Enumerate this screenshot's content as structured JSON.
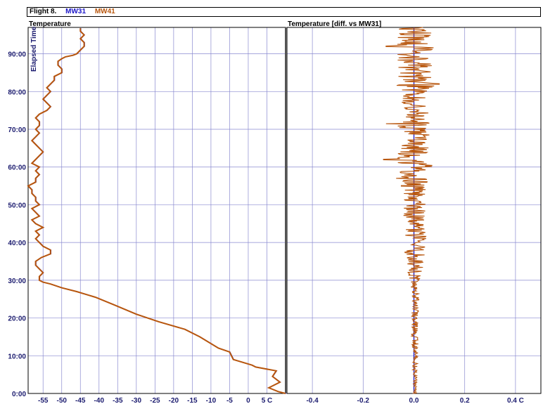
{
  "header": {
    "flight": "Flight 8.",
    "series_names": [
      "MW31",
      "MW41"
    ]
  },
  "colors": {
    "MW31": "#1d17c8",
    "MW41": "#b8560d",
    "grid": "#8a8ad0",
    "axis_text": "#1a1a6e"
  },
  "chart_data": [
    {
      "type": "line",
      "title": "Temperature",
      "xlabel": "",
      "ylabel": "Elapsed Time",
      "x_unit": "C",
      "xlim": [
        -59,
        10
      ],
      "xticks": [
        -55,
        -50,
        -45,
        -40,
        -35,
        -30,
        -25,
        -20,
        -15,
        -10,
        -5,
        0,
        5
      ],
      "xtick_labels": [
        "-55",
        "-50",
        "-45",
        "-40",
        "-35",
        "-30",
        "-25",
        "-20",
        "-15",
        "-10",
        "-5",
        "0",
        "5 C"
      ],
      "ylim": [
        0,
        97
      ],
      "yticks": [
        0,
        10,
        20,
        30,
        40,
        50,
        60,
        70,
        80,
        90
      ],
      "ytick_labels": [
        "0:00",
        "10:00",
        "20:00",
        "30:00",
        "40:00",
        "50:00",
        "60:00",
        "70:00",
        "80:00",
        "90:00"
      ],
      "grid": true,
      "series": [
        {
          "name": "MW41",
          "points": [
            [
              10,
              0
            ],
            [
              8,
              0.5
            ],
            [
              5.5,
              1.5
            ],
            [
              8.5,
              3
            ],
            [
              6.5,
              4.5
            ],
            [
              7.5,
              6
            ],
            [
              2,
              7
            ],
            [
              1,
              7.5
            ],
            [
              -4,
              9
            ],
            [
              -5,
              11
            ],
            [
              -8,
              12
            ],
            [
              -13,
              15
            ],
            [
              -17,
              17
            ],
            [
              -24,
              19
            ],
            [
              -30,
              21
            ],
            [
              -36,
              23.5
            ],
            [
              -41,
              25.5
            ],
            [
              -46,
              27
            ],
            [
              -50,
              28
            ],
            [
              -53,
              29
            ],
            [
              -55,
              29.5
            ],
            [
              -56,
              30
            ],
            [
              -56,
              31
            ],
            [
              -55,
              32
            ],
            [
              -56,
              33
            ],
            [
              -57,
              34
            ],
            [
              -57,
              35
            ],
            [
              -55.5,
              36
            ],
            [
              -53,
              37
            ],
            [
              -53,
              38
            ],
            [
              -55,
              39
            ],
            [
              -56,
              40
            ],
            [
              -57,
              41
            ],
            [
              -56,
              42
            ],
            [
              -57,
              43
            ],
            [
              -55,
              44
            ],
            [
              -57,
              45
            ],
            [
              -58,
              46
            ],
            [
              -56,
              47
            ],
            [
              -57,
              48
            ],
            [
              -58,
              49
            ],
            [
              -56,
              50
            ],
            [
              -57,
              51
            ],
            [
              -57,
              52
            ],
            [
              -58,
              53
            ],
            [
              -58,
              54
            ],
            [
              -59,
              55
            ],
            [
              -57,
              56
            ],
            [
              -57,
              57
            ],
            [
              -56,
              58
            ],
            [
              -57,
              59
            ],
            [
              -56,
              60
            ],
            [
              -58,
              61
            ],
            [
              -57,
              62
            ],
            [
              -56,
              63
            ],
            [
              -55,
              64
            ],
            [
              -56,
              65
            ],
            [
              -57,
              66
            ],
            [
              -58,
              67
            ],
            [
              -57,
              68
            ],
            [
              -56,
              69
            ],
            [
              -57,
              70
            ],
            [
              -56,
              71
            ],
            [
              -56,
              72
            ],
            [
              -57,
              73
            ],
            [
              -56,
              74
            ],
            [
              -54,
              75
            ],
            [
              -53,
              76
            ],
            [
              -54,
              77
            ],
            [
              -55,
              78
            ],
            [
              -54,
              79
            ],
            [
              -53,
              80
            ],
            [
              -54,
              81
            ],
            [
              -53,
              82
            ],
            [
              -52,
              83
            ],
            [
              -52,
              84
            ],
            [
              -50,
              85
            ],
            [
              -50,
              86
            ],
            [
              -51,
              87
            ],
            [
              -51,
              88
            ],
            [
              -50,
              88.7
            ],
            [
              -49,
              89.2
            ],
            [
              -47,
              89.6
            ],
            [
              -46,
              90
            ],
            [
              -45,
              91
            ],
            [
              -44,
              92
            ],
            [
              -44,
              93
            ],
            [
              -45,
              94
            ],
            [
              -44,
              95
            ],
            [
              -45,
              96
            ],
            [
              -45,
              96.8
            ]
          ]
        }
      ]
    },
    {
      "type": "line",
      "title": "Temperature [diff. vs MW31]",
      "xlabel": "",
      "ylabel": "",
      "x_unit": "C",
      "xlim": [
        -0.5,
        0.5
      ],
      "xticks": [
        -0.4,
        -0.2,
        0.0,
        0.2,
        0.4
      ],
      "xtick_labels": [
        "-0.4",
        "-0.2",
        "0.0",
        "0.2",
        "0.4 C"
      ],
      "ylim": [
        0,
        97
      ],
      "grid": true,
      "series": [
        {
          "name": "MW31",
          "points": [
            [
              0,
              0
            ],
            [
              0,
              97
            ]
          ]
        },
        {
          "name": "MW41",
          "noise_level": [
            [
              0,
              0.01
            ],
            [
              5,
              0.01
            ],
            [
              10,
              0.015
            ],
            [
              20,
              0.015
            ],
            [
              30,
              0.02
            ],
            [
              31,
              0.03
            ],
            [
              40,
              0.05
            ],
            [
              50,
              0.05
            ],
            [
              57,
              0.06
            ],
            [
              60,
              0.08
            ],
            [
              62,
              0.09
            ],
            [
              65,
              0.06
            ],
            [
              70,
              0.07
            ],
            [
              72,
              0.09
            ],
            [
              75,
              0.06
            ],
            [
              80,
              0.07
            ],
            [
              82,
              0.09
            ],
            [
              85,
              0.07
            ],
            [
              90,
              0.09
            ],
            [
              93,
              0.08
            ],
            [
              97,
              0.07
            ]
          ],
          "spikes": [
            [
              92,
              -0.11
            ],
            [
              62,
              -0.12
            ],
            [
              71.5,
              -0.11
            ],
            [
              82,
              0.1
            ],
            [
              57,
              -0.07
            ],
            [
              55,
              -0.05
            ]
          ]
        }
      ]
    }
  ]
}
